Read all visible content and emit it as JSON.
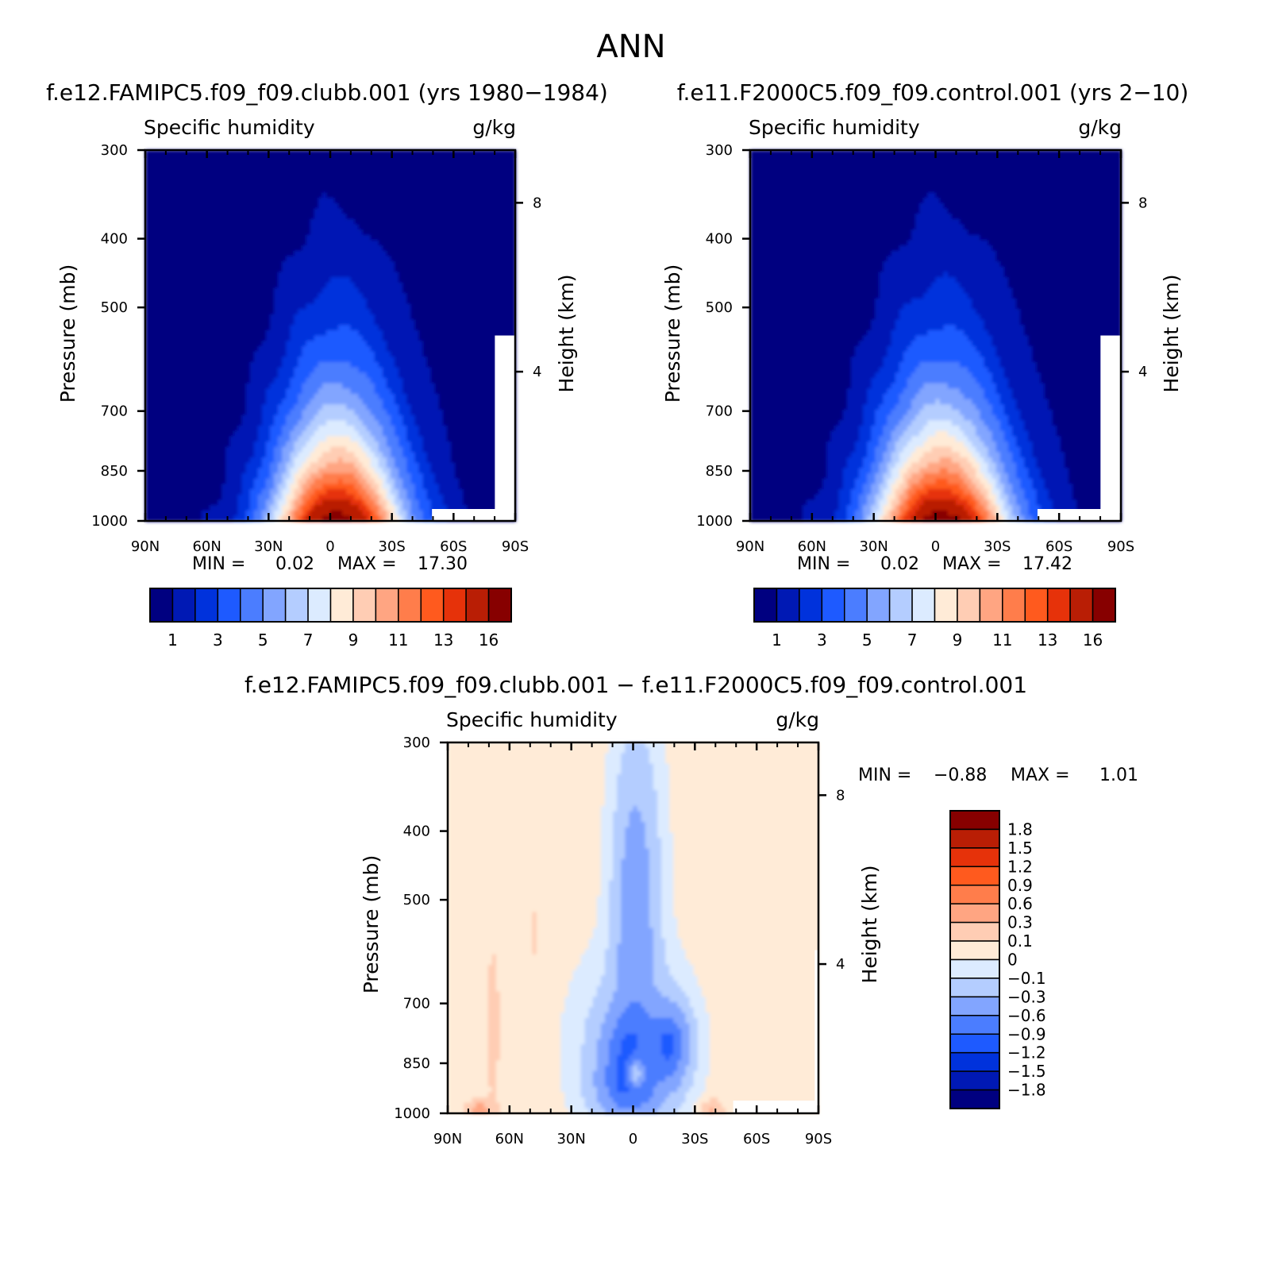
{
  "title": "ANN",
  "panels": [
    {
      "case_title": "f.e12.FAMIPC5.f09_f09.clubb.001 (yrs 1980−1984)",
      "variable": "Specific humidity",
      "units": "g/kg",
      "ylabel": "Pressure (mb)",
      "y2label": "Height (km)",
      "min_label": "MIN =",
      "min_value": "0.02",
      "max_label": "MAX =",
      "max_value": "17.30"
    },
    {
      "case_title": "f.e11.F2000C5.f09_f09.control.001 (yrs 2−10)",
      "variable": "Specific humidity",
      "units": "g/kg",
      "ylabel": "Pressure (mb)",
      "y2label": "Height (km)",
      "min_label": "MIN =",
      "min_value": "0.02",
      "max_label": "MAX =",
      "max_value": "17.42"
    },
    {
      "case_title": "f.e12.FAMIPC5.f09_f09.clubb.001 − f.e11.F2000C5.f09_f09.control.001",
      "variable": "Specific humidity",
      "units": "g/kg",
      "ylabel": "Pressure (mb)",
      "y2label": "Height (km)",
      "min_label": "MIN =",
      "min_value": "−0.88",
      "max_label": "MAX =",
      "max_value": "1.01"
    }
  ],
  "x_ticks": [
    "90N",
    "60N",
    "30N",
    "0",
    "30S",
    "60S",
    "90S"
  ],
  "p_ticks": [
    "300",
    "400",
    "500",
    "700",
    "850",
    "1000"
  ],
  "h_ticks": [
    "8",
    "4"
  ],
  "colorbar_main": {
    "colors": [
      "#000080",
      "#0019b4",
      "#0032dc",
      "#1e5aff",
      "#4b7dff",
      "#82a5ff",
      "#b4cdff",
      "#dcebff",
      "#ffebd7",
      "#ffcdb4",
      "#ffa582",
      "#ff7d4b",
      "#ff5a1e",
      "#e6320a",
      "#b91e05",
      "#870000"
    ],
    "labels": [
      "1",
      "3",
      "5",
      "7",
      "9",
      "11",
      "13",
      "16"
    ]
  },
  "colorbar_diff": {
    "colors": [
      "#870000",
      "#b91e05",
      "#e6320a",
      "#ff5a1e",
      "#ff7d4b",
      "#ffa582",
      "#ffcdb4",
      "#ffebd7",
      "#dcebff",
      "#b4cdff",
      "#82a5ff",
      "#4b7dff",
      "#1e5aff",
      "#0032dc",
      "#0019b4",
      "#000080"
    ],
    "labels": [
      "1.8",
      "1.5",
      "1.2",
      "0.9",
      "0.6",
      "0.3",
      "0.1",
      "0",
      "−0.1",
      "−0.3",
      "−0.6",
      "−0.9",
      "−1.2",
      "−1.5",
      "−1.8"
    ]
  },
  "chart_data": [
    {
      "type": "heatmap",
      "title": "Specific humidity",
      "units": "g/kg",
      "xlabel": "",
      "ylabel": "Pressure (mb)",
      "y2label": "Height (km)",
      "x_ticks": [
        "90N",
        "60N",
        "30N",
        "0",
        "30S",
        "60S",
        "90S"
      ],
      "ylim": [
        1000,
        300
      ],
      "min": 0.02,
      "max": 17.3,
      "levels": [
        1,
        2,
        3,
        4,
        5,
        6,
        7,
        8,
        9,
        10,
        11,
        12,
        13,
        14,
        16
      ],
      "peak": {
        "lat": -3,
        "p": 1000,
        "value": 17.3
      }
    },
    {
      "type": "heatmap",
      "title": "Specific humidity",
      "units": "g/kg",
      "xlabel": "",
      "ylabel": "Pressure (mb)",
      "y2label": "Height (km)",
      "x_ticks": [
        "90N",
        "60N",
        "30N",
        "0",
        "30S",
        "60S",
        "90S"
      ],
      "ylim": [
        1000,
        300
      ],
      "min": 0.02,
      "max": 17.42,
      "levels": [
        1,
        2,
        3,
        4,
        5,
        6,
        7,
        8,
        9,
        10,
        11,
        12,
        13,
        14,
        16
      ],
      "peak": {
        "lat": -3,
        "p": 1000,
        "value": 17.4
      }
    },
    {
      "type": "heatmap",
      "title": "Specific humidity",
      "units": "g/kg",
      "xlabel": "",
      "ylabel": "Pressure (mb)",
      "y2label": "Height (km)",
      "x_ticks": [
        "90N",
        "60N",
        "30N",
        "0",
        "30S",
        "60S",
        "90S"
      ],
      "ylim": [
        1000,
        300
      ],
      "min": -0.88,
      "max": 1.01,
      "levels": [
        -1.8,
        -1.5,
        -1.2,
        -0.9,
        -0.6,
        -0.3,
        -0.1,
        0,
        0.1,
        0.3,
        0.6,
        0.9,
        1.2,
        1.5,
        1.8
      ]
    }
  ]
}
